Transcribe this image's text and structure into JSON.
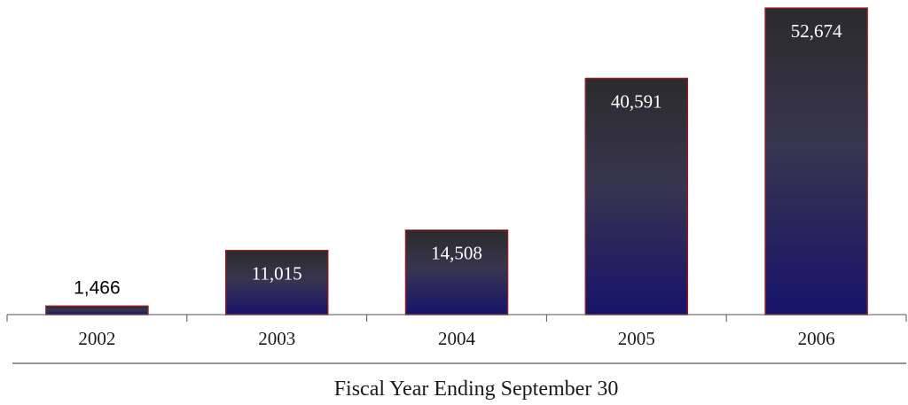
{
  "chart_data": {
    "type": "bar",
    "categories": [
      "2002",
      "2003",
      "2004",
      "2005",
      "2006"
    ],
    "values": [
      1466,
      11015,
      14508,
      40591,
      52674
    ],
    "value_labels": [
      "1,466",
      "11,015",
      "14,508",
      "40,591",
      "52,674"
    ],
    "title": "",
    "xlabel": "Fiscal Year Ending September 30",
    "ylabel": "",
    "ylim": [
      0,
      53000
    ],
    "grid": false,
    "legend": "none",
    "colors": {
      "bar_top": "#2b2b2b",
      "bar_mid": "#383550",
      "bar_bottom": "#17136a",
      "bar_outline": "#8a1f24",
      "axis": "#555555"
    }
  }
}
